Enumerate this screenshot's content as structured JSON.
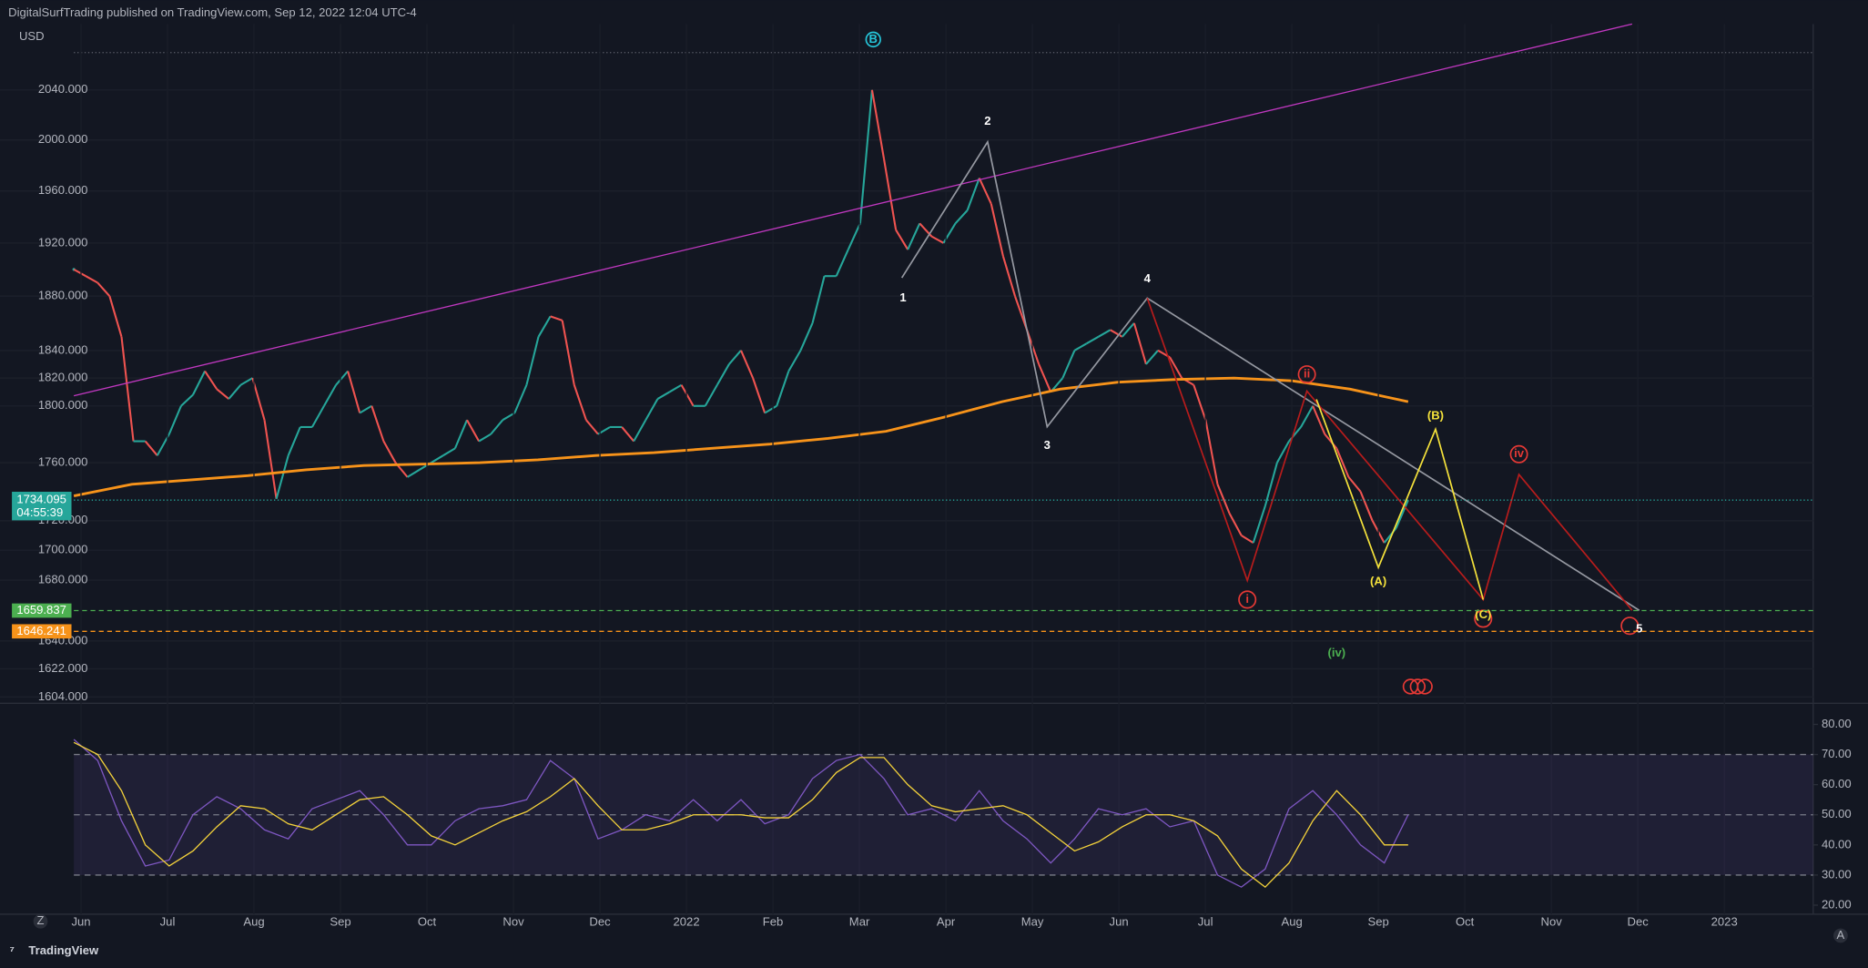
{
  "header": "DigitalSurfTrading published on TradingView.com, Sep 12, 2022 12:04 UTC-4",
  "footer": "TradingView",
  "chart_data": [
    {
      "type": "line",
      "currency": "USD",
      "log": true,
      "up_color": "#26a69a",
      "down_color": "#ef5350",
      "ylim": [
        1600,
        2094
      ],
      "yticks": [
        {
          "value": 2040,
          "label": "2040.000"
        },
        {
          "value": 2000,
          "label": "2000.000"
        },
        {
          "value": 1960,
          "label": "1960.000"
        },
        {
          "value": 1920,
          "label": "1920.000"
        },
        {
          "value": 1880,
          "label": "1880.000"
        },
        {
          "value": 1840,
          "label": "1840.000"
        },
        {
          "value": 1820,
          "label": "1820.000"
        },
        {
          "value": 1800,
          "label": "1800.000"
        },
        {
          "value": 1760,
          "label": "1760.000"
        },
        {
          "value": 1720,
          "label": "1720.000"
        },
        {
          "value": 1700,
          "label": "1700.000"
        },
        {
          "value": 1680,
          "label": "1680.000"
        },
        {
          "value": 1640,
          "label": "1640.000"
        },
        {
          "value": 1622,
          "label": "1622.000"
        },
        {
          "value": 1604,
          "label": "1604.000"
        }
      ],
      "series": [
        {
          "color": "#26a69a",
          "values": [
            1900,
            1895,
            1890,
            1880,
            1850,
            1775,
            1775,
            1765,
            1780,
            1800,
            1808,
            1825,
            1812,
            1805,
            1815,
            1820,
            1790,
            1735,
            1765,
            1785,
            1785,
            1800,
            1815,
            1825,
            1795,
            1800,
            1775,
            1760,
            1750,
            1755,
            1760,
            1765,
            1770,
            1790,
            1775,
            1780,
            1790,
            1795,
            1815,
            1850,
            1865,
            1862,
            1815,
            1790,
            1780,
            1785,
            1785,
            1775,
            1790,
            1805,
            1810,
            1815,
            1800,
            1800,
            1815,
            1830,
            1840,
            1820,
            1795,
            1800,
            1825,
            1840,
            1860,
            1895,
            1895,
            1915,
            1935,
            2040,
            1985,
            1930,
            1915,
            1935,
            1925,
            1920,
            1935,
            1945,
            1970,
            1950,
            1910,
            1880,
            1855,
            1830,
            1810,
            1820,
            1840,
            1845,
            1850,
            1855,
            1850,
            1860,
            1830,
            1840,
            1835,
            1820,
            1815,
            1790,
            1745,
            1725,
            1710,
            1705,
            1730,
            1760,
            1775,
            1785,
            1800,
            1780,
            1770,
            1750,
            1740,
            1720,
            1705,
            1715,
            1734.095
          ]
        },
        {
          "color": "#f7931a",
          "values": [
            1737,
            1745,
            1748,
            1751,
            1755,
            1758,
            1759,
            1760,
            1762,
            1765,
            1767,
            1770,
            1773,
            1777,
            1782,
            1792,
            1803,
            1812,
            1817,
            1819,
            1820,
            1818,
            1812,
            1803
          ]
        }
      ],
      "countdown": "04:55:39",
      "hlines": [
        {
          "value": 1659.837,
          "color": "#4caf50"
        },
        {
          "value": 1646.241,
          "color": "#f7931a"
        }
      ],
      "annotations": [
        "B",
        "1",
        "2",
        "3",
        "4",
        "i",
        "ii",
        "iv",
        "(A)",
        "(B)",
        "(C)",
        "(iv)",
        "5"
      ]
    },
    {
      "type": "line",
      "ylim": [
        17,
        87
      ],
      "yticks": [
        {
          "value": 80,
          "label": "80.00"
        },
        {
          "value": 70,
          "label": "70.00"
        },
        {
          "value": 60,
          "label": "60.00"
        },
        {
          "value": 50,
          "label": "50.00"
        },
        {
          "value": 40,
          "label": "40.00"
        },
        {
          "value": 30,
          "label": "30.00"
        },
        {
          "value": 20,
          "label": "20.00"
        }
      ],
      "band": [
        30,
        70
      ],
      "hlines": [
        70,
        50,
        30
      ],
      "series": [
        {
          "color": "#7e57c2",
          "values": [
            75,
            68,
            48,
            33,
            35,
            50,
            56,
            52,
            45,
            42,
            52,
            55,
            58,
            50,
            40,
            40,
            48,
            52,
            53,
            55,
            68,
            62,
            42,
            45,
            50,
            48,
            55,
            48,
            55,
            47,
            50,
            62,
            68,
            70,
            62,
            50,
            52,
            48,
            58,
            48,
            42,
            34,
            42,
            52,
            50,
            52,
            46,
            48,
            30,
            26,
            32,
            52,
            58,
            50,
            40,
            34,
            50
          ]
        },
        {
          "color": "#f5d33b",
          "values": [
            74,
            70,
            58,
            40,
            33,
            38,
            46,
            53,
            52,
            47,
            45,
            50,
            55,
            56,
            50,
            43,
            40,
            44,
            48,
            51,
            56,
            62,
            53,
            45,
            45,
            47,
            50,
            50,
            50,
            49,
            49,
            55,
            64,
            69,
            69,
            60,
            53,
            51,
            52,
            53,
            50,
            44,
            38,
            41,
            46,
            50,
            50,
            48,
            43,
            32,
            26,
            34,
            48,
            58,
            50,
            40,
            40
          ]
        }
      ],
      "xaxis_labels": [
        "Jun",
        "Jul",
        "Aug",
        "Sep",
        "Oct",
        "Nov",
        "Dec",
        "2022",
        "Feb",
        "Mar",
        "Apr",
        "May",
        "Jun",
        "Jul",
        "Aug",
        "Sep",
        "Oct",
        "Nov",
        "Dec",
        "2023"
      ]
    }
  ]
}
